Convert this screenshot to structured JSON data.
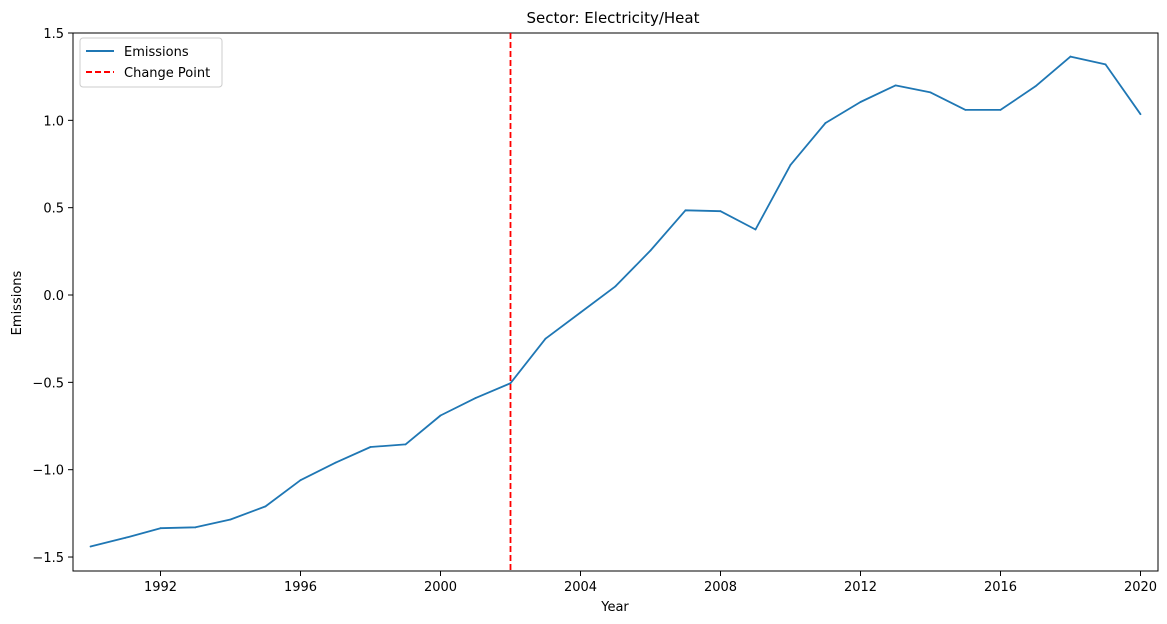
{
  "chart_data": {
    "type": "line",
    "title": "Sector: Electricity/Heat",
    "xlabel": "Year",
    "ylabel": "Emissions",
    "xlim": [
      1989.5,
      2020.5
    ],
    "ylim": [
      -1.58,
      1.5
    ],
    "xticks": [
      1992,
      1996,
      2000,
      2004,
      2008,
      2012,
      2016,
      2020
    ],
    "xtick_labels": [
      "1992",
      "1996",
      "2000",
      "2004",
      "2008",
      "2012",
      "2016",
      "2020"
    ],
    "yticks": [
      -1.5,
      -1.0,
      -0.5,
      0.0,
      0.5,
      1.0,
      1.5
    ],
    "ytick_labels": [
      "−1.5",
      "−1.0",
      "−0.5",
      "0.0",
      "0.5",
      "1.0",
      "1.5"
    ],
    "grid": false,
    "legend_position": "upper-left",
    "series": [
      {
        "name": "Emissions",
        "color": "#1f77b4",
        "x": [
          1990,
          1991,
          1992,
          1993,
          1994,
          1995,
          1996,
          1997,
          1998,
          1999,
          2000,
          2001,
          2002,
          2003,
          2004,
          2005,
          2006,
          2007,
          2008,
          2009,
          2010,
          2011,
          2012,
          2013,
          2014,
          2015,
          2016,
          2017,
          2018,
          2019,
          2020
        ],
        "y": [
          -1.44,
          -1.39,
          -1.335,
          -1.33,
          -1.285,
          -1.21,
          -1.06,
          -0.96,
          -0.87,
          -0.855,
          -0.69,
          -0.59,
          -0.505,
          -0.25,
          -0.1,
          0.05,
          0.255,
          0.485,
          0.48,
          0.375,
          0.745,
          0.985,
          1.105,
          1.2,
          1.16,
          1.06,
          1.06,
          1.195,
          1.365,
          1.32,
          1.035
        ]
      }
    ],
    "change_point": {
      "name": "Change Point",
      "x": 2002,
      "color": "#ff0000",
      "style": "dashed"
    }
  }
}
